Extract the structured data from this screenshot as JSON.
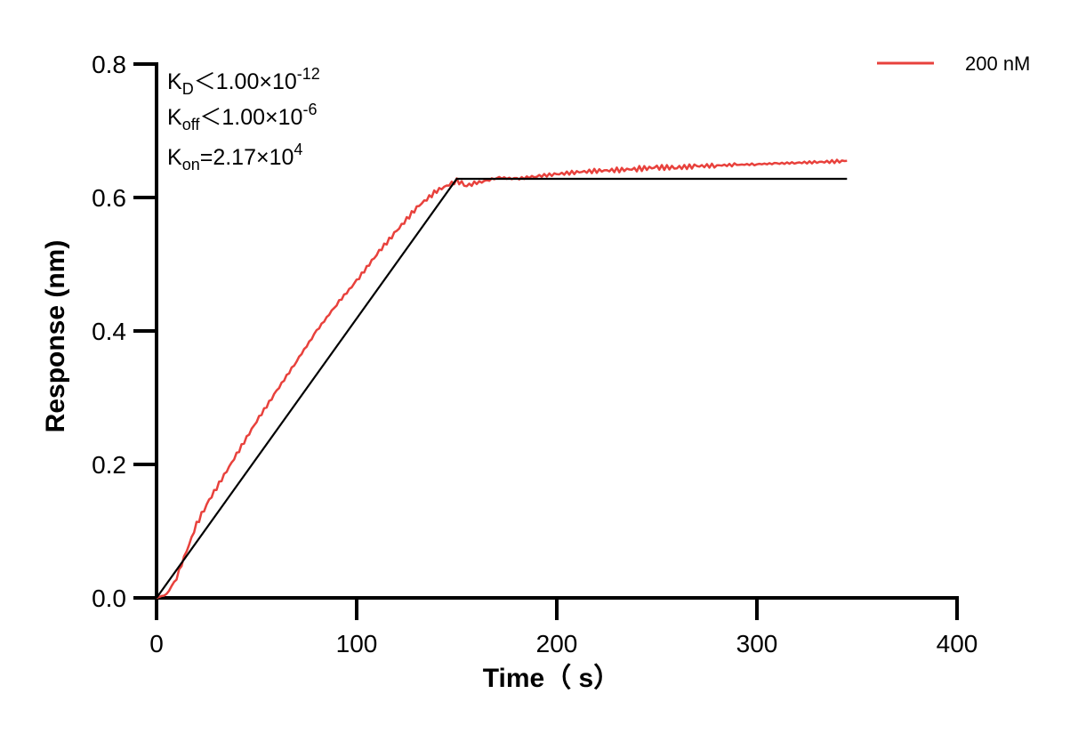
{
  "chart_data": {
    "type": "line",
    "title": "",
    "xlabel": "Time（ s）",
    "ylabel": "Response (nm)",
    "xlim": [
      0,
      400
    ],
    "ylim": [
      0,
      0.8
    ],
    "x_ticks": [
      0,
      100,
      200,
      300,
      400
    ],
    "x_tick_labels": [
      "0",
      "100",
      "200",
      "300",
      "400"
    ],
    "y_ticks": [
      0.0,
      0.2,
      0.4,
      0.6,
      0.8
    ],
    "y_tick_labels": [
      "0.0",
      "0.2",
      "0.4",
      "0.6",
      "0.8"
    ],
    "grid": false,
    "legend_position": "top-right",
    "annotations": {
      "kd": {
        "base": "K",
        "sub": "D",
        "text": "＜1.00×10",
        "sup": "-12"
      },
      "koff": {
        "base": "K",
        "sub": "off",
        "text": "＜1.00×10",
        "sup": "-6"
      },
      "kon": {
        "base": "K",
        "sub": "on",
        "text": "=2.17×10",
        "sup": "4"
      }
    },
    "series": [
      {
        "name": "200 nM",
        "color": "#e8413c",
        "x": [
          0,
          5,
          10,
          15,
          20,
          25,
          30,
          40,
          50,
          60,
          70,
          80,
          90,
          100,
          110,
          120,
          130,
          140,
          150,
          155,
          160,
          165,
          170,
          180,
          190,
          200,
          210,
          220,
          230,
          240,
          250,
          260,
          270,
          280,
          290,
          300,
          310,
          320,
          330,
          340,
          345
        ],
        "y": [
          0.0,
          0.005,
          0.03,
          0.07,
          0.11,
          0.14,
          0.165,
          0.215,
          0.265,
          0.31,
          0.355,
          0.4,
          0.44,
          0.475,
          0.515,
          0.55,
          0.585,
          0.61,
          0.625,
          0.618,
          0.622,
          0.625,
          0.63,
          0.628,
          0.632,
          0.635,
          0.638,
          0.64,
          0.641,
          0.643,
          0.645,
          0.645,
          0.647,
          0.648,
          0.649,
          0.65,
          0.651,
          0.652,
          0.653,
          0.654,
          0.655
        ]
      },
      {
        "name": "",
        "color": "#000000",
        "x": [
          0,
          150,
          345
        ],
        "y": [
          0.0,
          0.628,
          0.628
        ]
      }
    ]
  }
}
